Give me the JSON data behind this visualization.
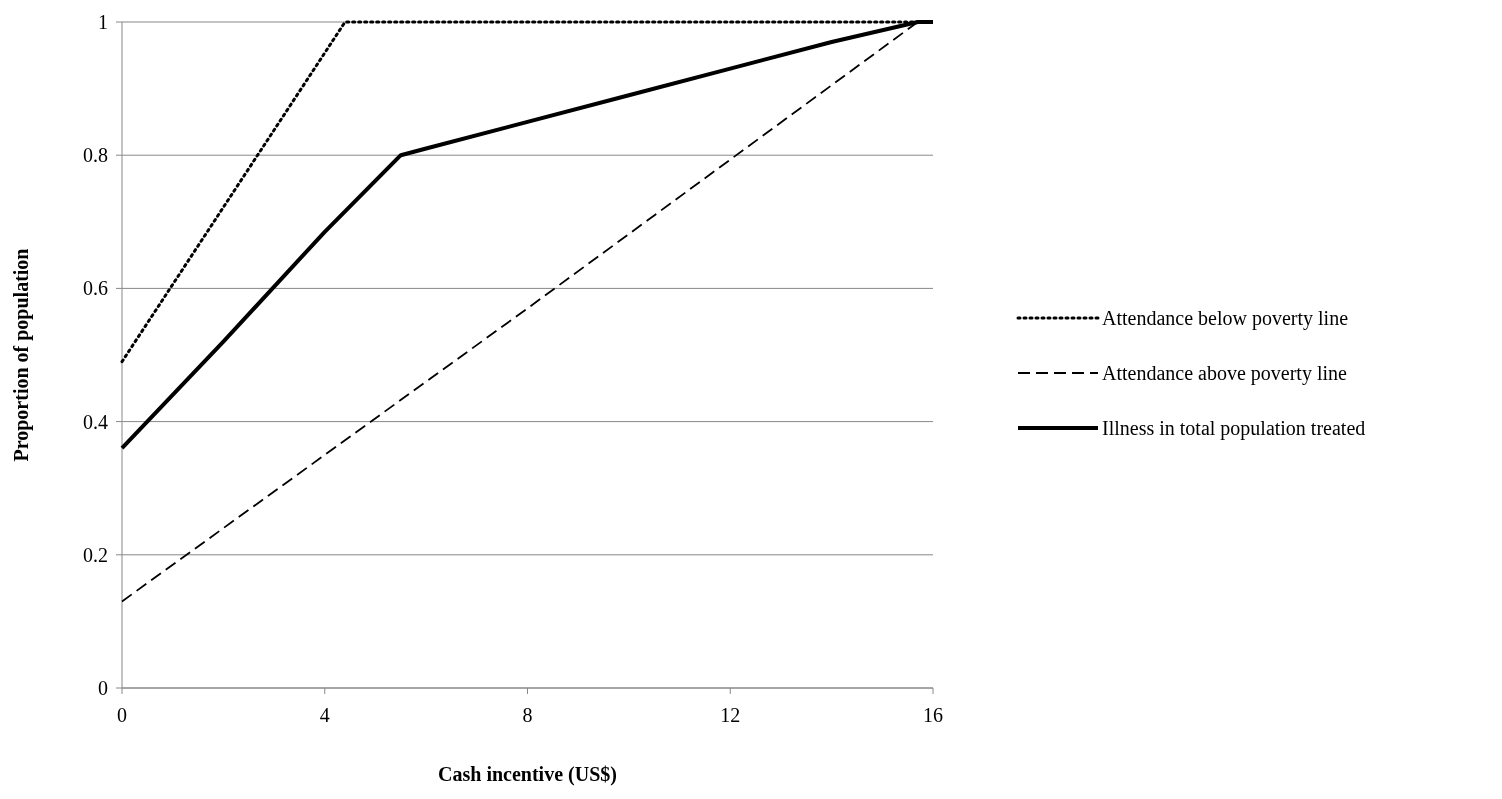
{
  "chart_data": {
    "type": "line",
    "xlabel": "Cash incentive (US$)",
    "ylabel": "Proportion of population",
    "xlim": [
      0,
      16
    ],
    "xticks": [
      0,
      4,
      8,
      12,
      16
    ],
    "ylim": [
      0,
      1
    ],
    "yticks": [
      0,
      0.2,
      0.4,
      0.6,
      0.8,
      1
    ],
    "grid": "y",
    "legend": "right",
    "series": [
      {
        "name": "Attendance below poverty line",
        "color": "#000000",
        "line_style": "dotted",
        "x": [
          0,
          4.4,
          16
        ],
        "values": [
          0.49,
          1,
          1
        ]
      },
      {
        "name": "Attendance above poverty line",
        "color": "#000000",
        "line_style": "dashed",
        "x": [
          0,
          8,
          15.7,
          16
        ],
        "values": [
          0.13,
          0.57,
          1,
          1
        ]
      },
      {
        "name": "Illness in total population treated",
        "color": "#000000",
        "line_style": "solid",
        "x": [
          0,
          2,
          4,
          5.5,
          6,
          8,
          10,
          12,
          14,
          15.7,
          16
        ],
        "values": [
          0.36,
          0.52,
          0.685,
          0.8,
          0.81,
          0.85,
          0.89,
          0.93,
          0.97,
          1,
          1
        ]
      }
    ]
  }
}
